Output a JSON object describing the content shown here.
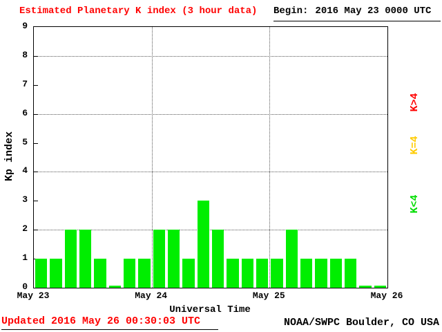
{
  "header": {
    "title": "Estimated Planetary K index (3 hour data)",
    "begin_label": "Begin:",
    "begin_value": "2016 May 23 0000 UTC"
  },
  "footer": {
    "updated": "Updated 2016 May 26 00:30:03 UTC",
    "source": "NOAA/SWPC Boulder, CO USA"
  },
  "legend": [
    {
      "label": "K>4",
      "color": "#ff0000"
    },
    {
      "label": "K=4",
      "color": "#ffcc00"
    },
    {
      "label": "K<4",
      "color": "#00dd00"
    }
  ],
  "chart_data": {
    "type": "bar",
    "title": "Estimated Planetary K index (3 hour data)",
    "xlabel": "Universal Time",
    "ylabel": "Kp index",
    "ylim": [
      0,
      9
    ],
    "yticks": [
      0,
      1,
      2,
      3,
      4,
      5,
      6,
      7,
      8,
      9
    ],
    "h_gridlines": [
      2,
      4,
      6,
      8
    ],
    "v_gridline_days": [
      1,
      2
    ],
    "days": 3,
    "bar_interval_hours": 3,
    "x_day_labels": [
      "May 23",
      "May 24",
      "May 25",
      "May 26"
    ],
    "colors": {
      "below4": "#00ee00",
      "equal4": "#ffcc00",
      "above4": "#ff0000"
    },
    "values": [
      1,
      1,
      2,
      2,
      1,
      0,
      1,
      1,
      2,
      2,
      1,
      3,
      2,
      1,
      1,
      1,
      1,
      2,
      1,
      1,
      1,
      1,
      0,
      0
    ],
    "legend_entries": [
      "K>4",
      "K=4",
      "K<4"
    ],
    "grid": "dotted horizontal at even Kp values, dotted vertical at day boundaries",
    "legend_position": "right, rotated vertical"
  }
}
